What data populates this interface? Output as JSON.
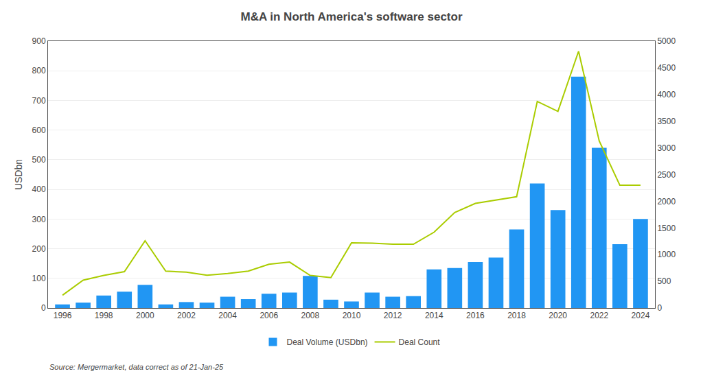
{
  "chart_data": {
    "type": "bar",
    "title": "M&A in North America's software sector",
    "ylabel": "USDbn",
    "source": "Source: Mergermarket, data correct as of 21-Jan-25",
    "x": [
      1996,
      1997,
      1998,
      1999,
      2000,
      2001,
      2002,
      2003,
      2004,
      2005,
      2006,
      2007,
      2008,
      2009,
      2010,
      2011,
      2012,
      2013,
      2014,
      2015,
      2016,
      2017,
      2018,
      2019,
      2020,
      2021,
      2022,
      2023,
      2024
    ],
    "series": [
      {
        "name": "Deal Volume (USDbn)",
        "type": "bar",
        "color": "#2196F3",
        "values": [
          12,
          18,
          42,
          55,
          78,
          12,
          20,
          18,
          38,
          30,
          48,
          52,
          108,
          28,
          22,
          52,
          38,
          40,
          130,
          135,
          155,
          170,
          265,
          420,
          330,
          780,
          540,
          215,
          300
        ]
      },
      {
        "name": "Deal Count",
        "type": "line",
        "color": "#AACC00",
        "axis": "y2",
        "values": [
          240,
          520,
          610,
          680,
          1260,
          690,
          670,
          615,
          645,
          690,
          820,
          860,
          610,
          570,
          1220,
          1215,
          1195,
          1195,
          1420,
          1790,
          1960,
          2025,
          2085,
          3870,
          3685,
          4810,
          3130,
          2300,
          2300
        ]
      }
    ],
    "xlim": [
      1995.3,
      2024.7
    ],
    "xticks": [
      1996,
      1998,
      2000,
      2002,
      2004,
      2006,
      2008,
      2010,
      2012,
      2014,
      2016,
      2018,
      2020,
      2022,
      2024
    ],
    "ylim": [
      0,
      900
    ],
    "yticks": [
      0,
      100,
      200,
      300,
      400,
      500,
      600,
      700,
      800,
      900
    ],
    "y2lim": [
      0,
      5000
    ],
    "y2ticks": [
      0,
      500,
      1000,
      1500,
      2000,
      2500,
      3000,
      3500,
      4000,
      4500,
      5000
    ],
    "grid": true,
    "legend": "bottom"
  }
}
